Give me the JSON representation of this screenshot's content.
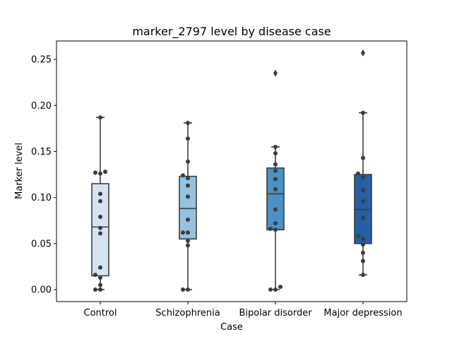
{
  "chart_data": {
    "type": "box",
    "title": "marker_2797 level by disease case",
    "xlabel": "Case",
    "ylabel": "Marker level",
    "ylim": [
      -0.013,
      0.27
    ],
    "yticks": [
      0.0,
      0.05,
      0.1,
      0.15,
      0.2,
      0.25
    ],
    "ytick_labels": [
      "0.00",
      "0.05",
      "0.10",
      "0.15",
      "0.20",
      "0.25"
    ],
    "categories": [
      "Control",
      "Schizophrenia",
      "Bipolar disorder",
      "Major depression"
    ],
    "colors": [
      "#d6e4f2",
      "#93c3df",
      "#4b91c4",
      "#2360a5"
    ],
    "boxes": [
      {
        "category": "Control",
        "whisker_low": 0.0,
        "q1": 0.015,
        "median": 0.068,
        "q3": 0.115,
        "whisker_high": 0.187,
        "outliers": []
      },
      {
        "category": "Schizophrenia",
        "whisker_low": 0.0,
        "q1": 0.055,
        "median": 0.088,
        "q3": 0.123,
        "whisker_high": 0.181,
        "outliers": []
      },
      {
        "category": "Bipolar disorder",
        "whisker_low": 0.0,
        "q1": 0.065,
        "median": 0.104,
        "q3": 0.132,
        "whisker_high": 0.155,
        "outliers": [
          0.235
        ]
      },
      {
        "category": "Major depression",
        "whisker_low": 0.016,
        "q1": 0.05,
        "median": 0.087,
        "q3": 0.125,
        "whisker_high": 0.192,
        "outliers": [
          0.257
        ]
      }
    ],
    "points": [
      {
        "category": "Control",
        "values": [
          0.187,
          0.127,
          0.126,
          0.128,
          0.104,
          0.096,
          0.079,
          0.067,
          0.061,
          0.024,
          0.016,
          0.013,
          0.005,
          0.0,
          0.0
        ]
      },
      {
        "category": "Schizophrenia",
        "values": [
          0.181,
          0.164,
          0.139,
          0.124,
          0.121,
          0.113,
          0.101,
          0.076,
          0.062,
          0.062,
          0.053,
          0.048,
          0.0,
          0.0
        ]
      },
      {
        "category": "Bipolar disorder",
        "values": [
          0.155,
          0.148,
          0.136,
          0.129,
          0.12,
          0.109,
          0.087,
          0.072,
          0.066,
          0.065,
          0.003,
          0.0,
          0.0
        ]
      },
      {
        "category": "Major depression",
        "values": [
          0.192,
          0.143,
          0.126,
          0.122,
          0.108,
          0.096,
          0.078,
          0.058,
          0.055,
          0.049,
          0.04,
          0.031,
          0.016
        ]
      }
    ]
  }
}
